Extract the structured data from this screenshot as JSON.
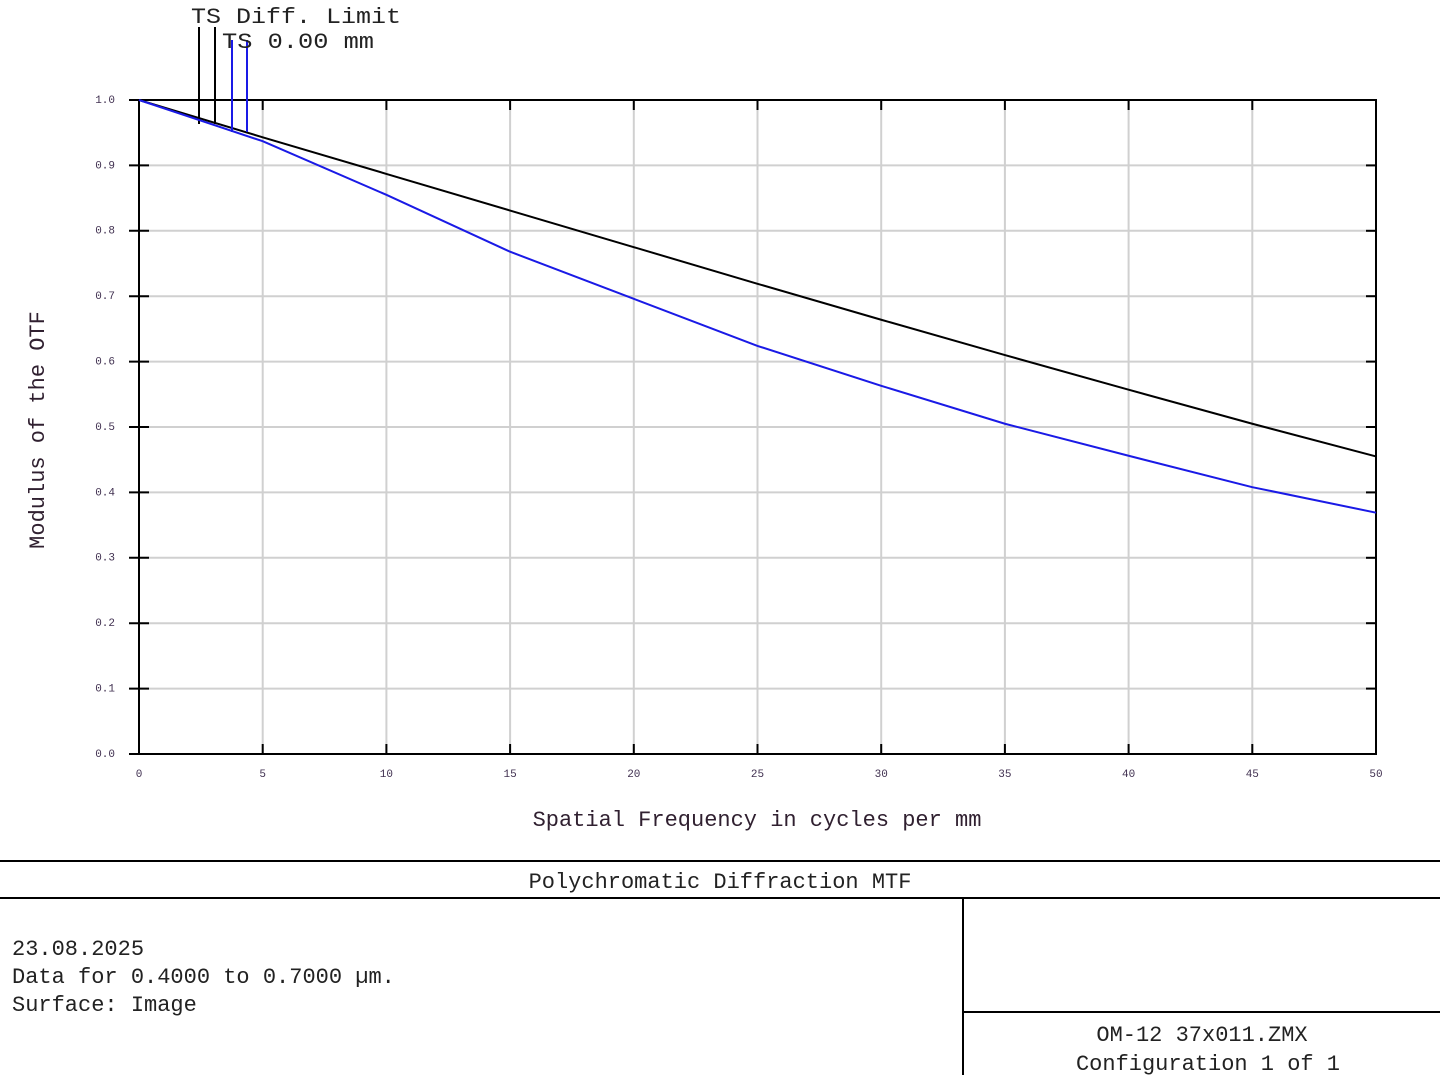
{
  "chart_data": {
    "type": "line",
    "xlabel": "Spatial Frequency in cycles per mm",
    "ylabel": "Modulus of the OTF",
    "x": [
      0,
      5,
      10,
      15,
      20,
      25,
      30,
      35,
      40,
      45,
      50
    ],
    "series": [
      {
        "name": "TS Diff. Limit",
        "color": "#000000",
        "values": [
          1.0,
          0.943,
          0.887,
          0.831,
          0.775,
          0.719,
          0.664,
          0.61,
          0.557,
          0.505,
          0.455
        ]
      },
      {
        "name": "TS 0.00 mm",
        "color": "#1a1ae6",
        "values": [
          1.0,
          0.937,
          0.855,
          0.768,
          0.696,
          0.624,
          0.563,
          0.505,
          0.456,
          0.408,
          0.369
        ]
      }
    ],
    "xlim": [
      0,
      50
    ],
    "xticks": [
      0,
      5,
      10,
      15,
      20,
      25,
      30,
      35,
      40,
      45,
      50
    ],
    "ylim": [
      0,
      1
    ],
    "yticks": [
      {
        "value": 0,
        "label": "0.0"
      },
      0.1,
      0.2,
      0.3,
      0.4,
      0.5,
      0.6,
      0.7,
      0.8,
      0.9,
      {
        "value": 1,
        "label": "1.0"
      }
    ],
    "grid": true
  },
  "footer": {
    "title": "Polychromatic Diffraction MTF",
    "info": [
      "23.08.2025",
      "Data for 0.4000 to 0.7000 µm.",
      "Surface: Image"
    ],
    "file": "OM-12 37x011.ZMX",
    "config": "Configuration 1 of 1"
  }
}
